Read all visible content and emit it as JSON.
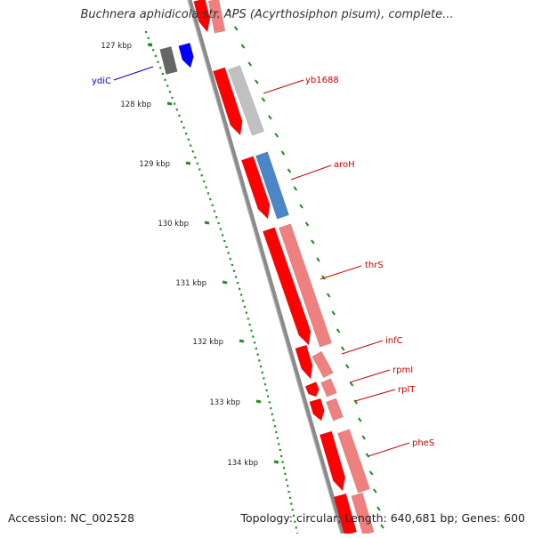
{
  "title": "Buchnera aphidicola str. APS (Acyrthosiphon pisum), complete...",
  "footer": {
    "accession": "Accession: NC_002528",
    "summary": "Topology: circular; Length: 640,681 bp; Genes: 600"
  },
  "ruler_labels": [
    "127 kbp",
    "128 kbp",
    "129 kbp",
    "130 kbp",
    "131 kbp",
    "132 kbp",
    "133 kbp",
    "134 kbp"
  ],
  "genes": [
    {
      "name": "ydiC",
      "color": "#0000cc"
    },
    {
      "name": "yb1688",
      "color": "#cc0000"
    },
    {
      "name": "aroH",
      "color": "#cc0000"
    },
    {
      "name": "thrS",
      "color": "#cc0000"
    },
    {
      "name": "infC",
      "color": "#cc0000"
    },
    {
      "name": "rpmI",
      "color": "#cc0000"
    },
    {
      "name": "rplT",
      "color": "#cc0000"
    },
    {
      "name": "pheS",
      "color": "#cc0000"
    }
  ],
  "colors": {
    "backbone": "#8a8a8a",
    "cds": "#ff0000",
    "gene_light": "#f08080",
    "gene_gray": "#c0c0c0",
    "gene_blue": "#4a86c8",
    "gene_darkgray": "#666666",
    "gene_darkblue": "#0000ff",
    "ticks": "#228b22"
  }
}
